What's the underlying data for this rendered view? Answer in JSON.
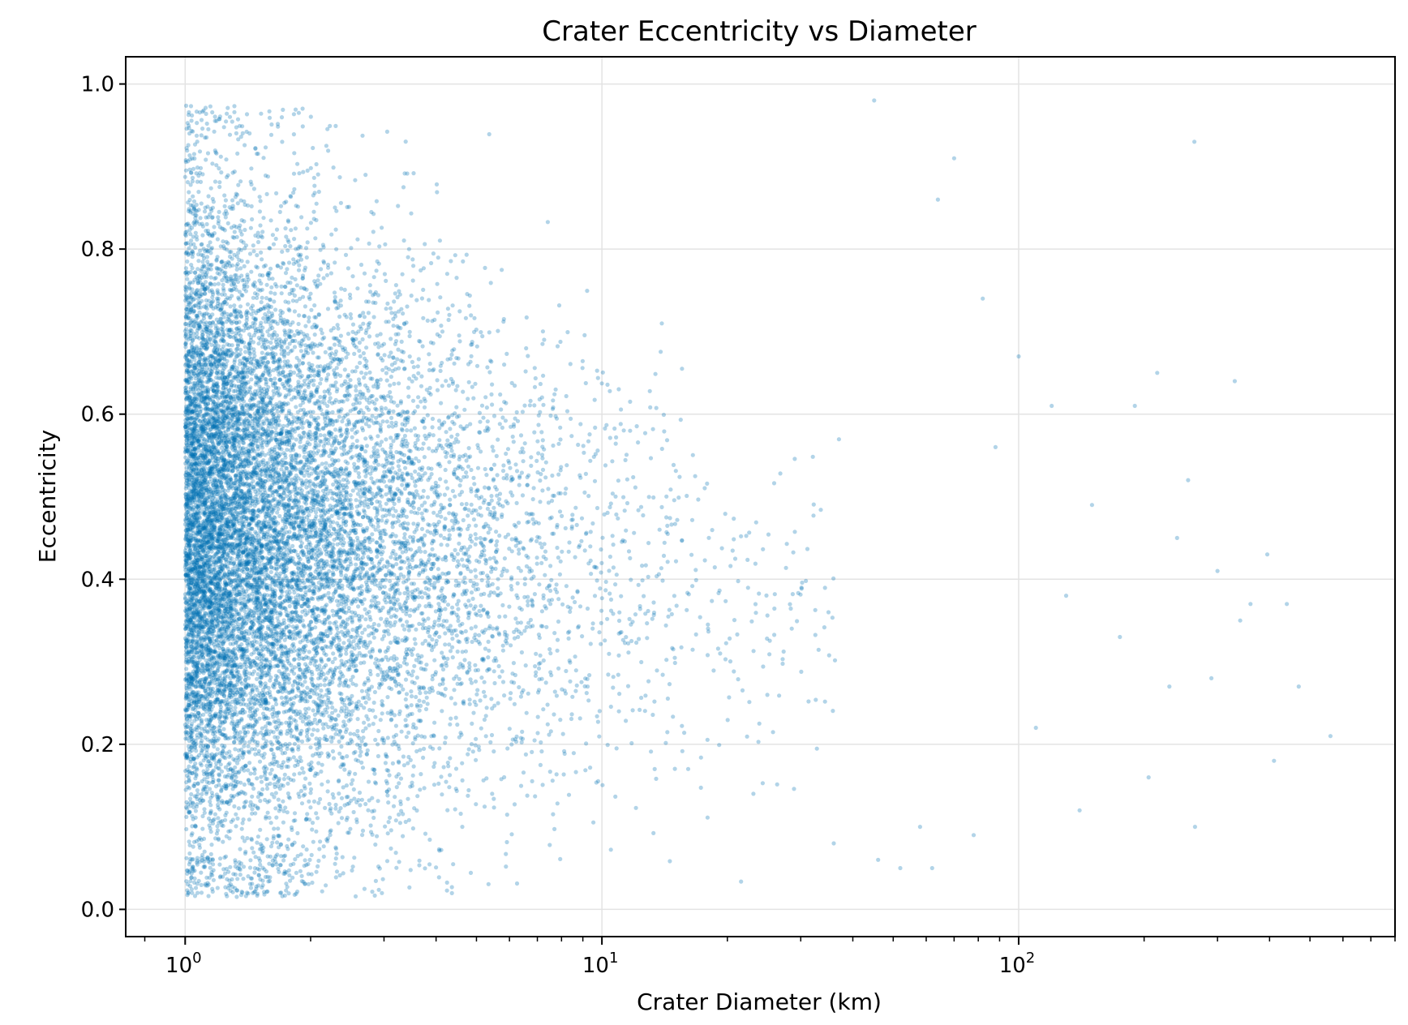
{
  "chart_data": {
    "type": "scatter",
    "title": "Crater Eccentricity vs Diameter",
    "xlabel": "Crater Diameter (km)",
    "ylabel": "Eccentricity",
    "x_scale": "log",
    "xlim": [
      0.72,
      800
    ],
    "ylim": [
      -0.033,
      1.033
    ],
    "grid": true,
    "legend": "none",
    "color": "#0072b2",
    "marker_alpha": 0.3,
    "y_ticks": [
      "0.0",
      "0.2",
      "0.4",
      "0.6",
      "0.8",
      "1.0"
    ],
    "x_ticks": [
      {
        "base": "10",
        "exp": "0",
        "value": 1
      },
      {
        "base": "10",
        "exp": "1",
        "value": 10
      },
      {
        "base": "10",
        "exp": "2",
        "value": 100
      }
    ],
    "series": [
      {
        "description": "dense cloud of craters; eccentricity spread narrows toward larger diameters",
        "x": [
          45,
          264,
          70,
          360,
          290,
          470,
          560,
          410,
          205,
          330,
          150,
          395,
          100,
          120,
          64,
          82,
          215,
          255,
          190,
          300,
          130,
          88,
          440,
          230,
          175,
          58,
          110,
          52,
          340,
          265,
          240,
          46,
          78,
          140,
          36,
          62
        ],
        "y": [
          0.98,
          0.93,
          0.91,
          0.37,
          0.28,
          0.27,
          0.21,
          0.18,
          0.16,
          0.64,
          0.49,
          0.43,
          0.67,
          0.61,
          0.86,
          0.74,
          0.65,
          0.52,
          0.61,
          0.41,
          0.38,
          0.56,
          0.37,
          0.27,
          0.33,
          0.1,
          0.22,
          0.05,
          0.35,
          0.1,
          0.45,
          0.06,
          0.09,
          0.12,
          0.08,
          0.05
        ]
      }
    ]
  }
}
